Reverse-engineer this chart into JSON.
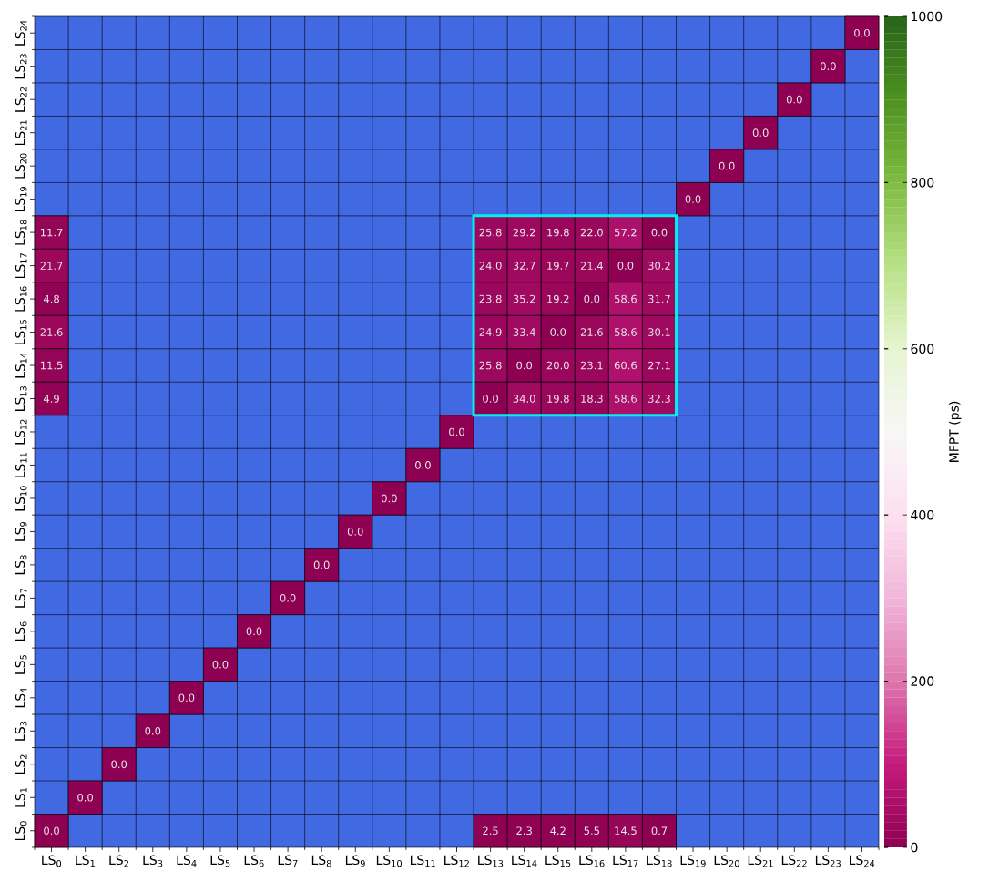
{
  "chart_data": {
    "type": "heatmap",
    "clabel": "MFPT (ps)",
    "color": "#4169e1",
    "clim": [
      0,
      1000
    ],
    "cticks": [
      0,
      200,
      400,
      600,
      800,
      1000
    ],
    "categories": [
      "LS$_{0}$",
      "LS$_{1}$",
      "LS$_{2}$",
      "LS$_{3}$",
      "LS$_{4}$",
      "LS$_{5}$",
      "LS$_{6}$",
      "LS$_{7}$",
      "LS$_{8}$",
      "LS$_{9}$",
      "LS$_{10}$",
      "LS$_{11}$",
      "LS$_{12}$",
      "LS$_{13}$",
      "LS$_{14}$",
      "LS$_{15}$",
      "LS$_{16}$",
      "LS$_{17}$",
      "LS$_{18}$",
      "LS$_{19}$",
      "LS$_{20}$",
      "LS$_{21}$",
      "LS$_{22}$",
      "LS$_{23}$",
      "LS$_{24}$"
    ],
    "y_categories": [
      "LS$_{24}$",
      "LS$_{23}$",
      "LS$_{22}$",
      "LS$_{21}$",
      "LS$_{20}$",
      "LS$_{19}$",
      "LS$_{18}$",
      "LS$_{17}$",
      "LS$_{16}$",
      "LS$_{15}$",
      "LS$_{14}$",
      "LS$_{13}$",
      "LS$_{12}$",
      "LS$_{11}$",
      "LS$_{10}$",
      "LS$_{9}$",
      "LS$_{8}$",
      "LS$_{7}$",
      "LS$_{6}$",
      "LS$_{5}$",
      "LS$_{4}$",
      "LS$_{3}$",
      "LS$_{2}$",
      "LS$_{1}$",
      "LS$_{0}$"
    ],
    "cells": [
      [
        null,
        null,
        null,
        null,
        null,
        null,
        null,
        null,
        null,
        null,
        null,
        null,
        null,
        null,
        null,
        null,
        null,
        null,
        null,
        null,
        null,
        null,
        null,
        null,
        0.0
      ],
      [
        null,
        null,
        null,
        null,
        null,
        null,
        null,
        null,
        null,
        null,
        null,
        null,
        null,
        null,
        null,
        null,
        null,
        null,
        null,
        null,
        null,
        null,
        null,
        0.0,
        null
      ],
      [
        null,
        null,
        null,
        null,
        null,
        null,
        null,
        null,
        null,
        null,
        null,
        null,
        null,
        null,
        null,
        null,
        null,
        null,
        null,
        null,
        null,
        null,
        0.0,
        null,
        null
      ],
      [
        null,
        null,
        null,
        null,
        null,
        null,
        null,
        null,
        null,
        null,
        null,
        null,
        null,
        null,
        null,
        null,
        null,
        null,
        null,
        null,
        null,
        0.0,
        null,
        null,
        null
      ],
      [
        null,
        null,
        null,
        null,
        null,
        null,
        null,
        null,
        null,
        null,
        null,
        null,
        null,
        null,
        null,
        null,
        null,
        null,
        null,
        null,
        0.0,
        null,
        null,
        null,
        null
      ],
      [
        null,
        null,
        null,
        null,
        null,
        null,
        null,
        null,
        null,
        null,
        null,
        null,
        null,
        null,
        null,
        null,
        null,
        null,
        null,
        0.0,
        null,
        null,
        null,
        null,
        null
      ],
      [
        11.7,
        null,
        null,
        null,
        null,
        null,
        null,
        null,
        null,
        null,
        null,
        null,
        null,
        25.8,
        29.2,
        19.8,
        22.0,
        57.2,
        0.0,
        null,
        null,
        null,
        null,
        null,
        null
      ],
      [
        21.7,
        null,
        null,
        null,
        null,
        null,
        null,
        null,
        null,
        null,
        null,
        null,
        null,
        24.0,
        32.7,
        19.7,
        21.4,
        0.0,
        30.2,
        null,
        null,
        null,
        null,
        null,
        null
      ],
      [
        4.8,
        null,
        null,
        null,
        null,
        null,
        null,
        null,
        null,
        null,
        null,
        null,
        null,
        23.8,
        35.2,
        19.2,
        0.0,
        58.6,
        31.7,
        null,
        null,
        null,
        null,
        null,
        null
      ],
      [
        21.6,
        null,
        null,
        null,
        null,
        null,
        null,
        null,
        null,
        null,
        null,
        null,
        null,
        24.9,
        33.4,
        0.0,
        21.6,
        58.6,
        30.1,
        null,
        null,
        null,
        null,
        null,
        null
      ],
      [
        11.5,
        null,
        null,
        null,
        null,
        null,
        null,
        null,
        null,
        null,
        null,
        null,
        null,
        25.8,
        0.0,
        20.0,
        23.1,
        60.6,
        27.1,
        null,
        null,
        null,
        null,
        null,
        null
      ],
      [
        4.9,
        null,
        null,
        null,
        null,
        null,
        null,
        null,
        null,
        null,
        null,
        null,
        null,
        0.0,
        34.0,
        19.8,
        18.3,
        58.6,
        32.3,
        null,
        null,
        null,
        null,
        null,
        null
      ],
      [
        null,
        null,
        null,
        null,
        null,
        null,
        null,
        null,
        null,
        null,
        null,
        null,
        0.0,
        null,
        null,
        null,
        null,
        null,
        null,
        null,
        null,
        null,
        null,
        null,
        null
      ],
      [
        null,
        null,
        null,
        null,
        null,
        null,
        null,
        null,
        null,
        null,
        null,
        0.0,
        null,
        null,
        null,
        null,
        null,
        null,
        null,
        null,
        null,
        null,
        null,
        null,
        null
      ],
      [
        null,
        null,
        null,
        null,
        null,
        null,
        null,
        null,
        null,
        null,
        0.0,
        null,
        null,
        null,
        null,
        null,
        null,
        null,
        null,
        null,
        null,
        null,
        null,
        null,
        null
      ],
      [
        null,
        null,
        null,
        null,
        null,
        null,
        null,
        null,
        null,
        0.0,
        null,
        null,
        null,
        null,
        null,
        null,
        null,
        null,
        null,
        null,
        null,
        null,
        null,
        null,
        null
      ],
      [
        null,
        null,
        null,
        null,
        null,
        null,
        null,
        null,
        0.0,
        null,
        null,
        null,
        null,
        null,
        null,
        null,
        null,
        null,
        null,
        null,
        null,
        null,
        null,
        null,
        null
      ],
      [
        null,
        null,
        null,
        null,
        null,
        null,
        null,
        0.0,
        null,
        null,
        null,
        null,
        null,
        null,
        null,
        null,
        null,
        null,
        null,
        null,
        null,
        null,
        null,
        null,
        null
      ],
      [
        null,
        null,
        null,
        null,
        null,
        null,
        0.0,
        null,
        null,
        null,
        null,
        null,
        null,
        null,
        null,
        null,
        null,
        null,
        null,
        null,
        null,
        null,
        null,
        null,
        null
      ],
      [
        null,
        null,
        null,
        null,
        null,
        0.0,
        null,
        null,
        null,
        null,
        null,
        null,
        null,
        null,
        null,
        null,
        null,
        null,
        null,
        null,
        null,
        null,
        null,
        null,
        null
      ],
      [
        null,
        null,
        null,
        null,
        0.0,
        null,
        null,
        null,
        null,
        null,
        null,
        null,
        null,
        null,
        null,
        null,
        null,
        null,
        null,
        null,
        null,
        null,
        null,
        null,
        null
      ],
      [
        null,
        null,
        null,
        0.0,
        null,
        null,
        null,
        null,
        null,
        null,
        null,
        null,
        null,
        null,
        null,
        null,
        null,
        null,
        null,
        null,
        null,
        null,
        null,
        null,
        null
      ],
      [
        null,
        null,
        0.0,
        null,
        null,
        null,
        null,
        null,
        null,
        null,
        null,
        null,
        null,
        null,
        null,
        null,
        null,
        null,
        null,
        null,
        null,
        null,
        null,
        null,
        null
      ],
      [
        null,
        0.0,
        null,
        null,
        null,
        null,
        null,
        null,
        null,
        null,
        null,
        null,
        null,
        null,
        null,
        null,
        null,
        null,
        null,
        null,
        null,
        null,
        null,
        null,
        null
      ],
      [
        0.0,
        null,
        null,
        null,
        null,
        null,
        null,
        null,
        null,
        null,
        null,
        null,
        null,
        2.5,
        2.3,
        4.2,
        5.5,
        14.5,
        0.7,
        null,
        null,
        null,
        null,
        null,
        null
      ]
    ],
    "cell_labels": [
      [
        null,
        null,
        null,
        null,
        null,
        null,
        null,
        null,
        null,
        null,
        null,
        null,
        null,
        null,
        null,
        null,
        null,
        null,
        null,
        null,
        null,
        null,
        null,
        null,
        "0.0"
      ],
      [
        null,
        null,
        null,
        null,
        null,
        null,
        null,
        null,
        null,
        null,
        null,
        null,
        null,
        null,
        null,
        null,
        null,
        null,
        null,
        null,
        null,
        null,
        null,
        "0.0",
        null
      ],
      [
        null,
        null,
        null,
        null,
        null,
        null,
        null,
        null,
        null,
        null,
        null,
        null,
        null,
        null,
        null,
        null,
        null,
        null,
        null,
        null,
        null,
        null,
        "0.0",
        null,
        null
      ],
      [
        null,
        null,
        null,
        null,
        null,
        null,
        null,
        null,
        null,
        null,
        null,
        null,
        null,
        null,
        null,
        null,
        null,
        null,
        null,
        null,
        null,
        "0.0",
        null,
        null,
        null
      ],
      [
        null,
        null,
        null,
        null,
        null,
        null,
        null,
        null,
        null,
        null,
        null,
        null,
        null,
        null,
        null,
        null,
        null,
        null,
        null,
        null,
        "0.0",
        null,
        null,
        null,
        null
      ],
      [
        null,
        null,
        null,
        null,
        null,
        null,
        null,
        null,
        null,
        null,
        null,
        null,
        null,
        null,
        null,
        null,
        null,
        null,
        null,
        "0.0",
        null,
        null,
        null,
        null,
        null
      ],
      [
        "11.7",
        null,
        null,
        null,
        null,
        null,
        null,
        null,
        null,
        null,
        null,
        null,
        null,
        "25.8",
        "29.2",
        "19.8",
        "22.0",
        "57.2",
        "0.0",
        null,
        null,
        null,
        null,
        null,
        null
      ],
      [
        "21.7",
        null,
        null,
        null,
        null,
        null,
        null,
        null,
        null,
        null,
        null,
        null,
        null,
        "24.0",
        "32.7",
        "19.7",
        "21.4",
        "0.0",
        "30.2",
        null,
        null,
        null,
        null,
        null,
        null
      ],
      [
        "4.8",
        null,
        null,
        null,
        null,
        null,
        null,
        null,
        null,
        null,
        null,
        null,
        null,
        "23.8",
        "35.2",
        "19.2",
        "0.0",
        "58.6",
        "31.7",
        null,
        null,
        null,
        null,
        null,
        null
      ],
      [
        "21.6",
        null,
        null,
        null,
        null,
        null,
        null,
        null,
        null,
        null,
        null,
        null,
        null,
        "24.9",
        "33.4",
        "0.0",
        "21.6",
        "58.6",
        "30.1",
        null,
        null,
        null,
        null,
        null,
        null
      ],
      [
        "11.5",
        null,
        null,
        null,
        null,
        null,
        null,
        null,
        null,
        null,
        null,
        null,
        null,
        "25.8",
        "0.0",
        "20.0",
        "23.1",
        "60.6",
        "27.1",
        null,
        null,
        null,
        null,
        null,
        null
      ],
      [
        "4.9",
        null,
        null,
        null,
        null,
        null,
        null,
        null,
        null,
        null,
        null,
        null,
        null,
        "0.0",
        "34.0",
        "19.8",
        "18.3",
        "58.6",
        "32.3",
        null,
        null,
        null,
        null,
        null,
        null
      ],
      [
        null,
        null,
        null,
        null,
        null,
        null,
        null,
        null,
        null,
        null,
        null,
        null,
        "0.0",
        null,
        null,
        null,
        null,
        null,
        null,
        null,
        null,
        null,
        null,
        null,
        null
      ],
      [
        null,
        null,
        null,
        null,
        null,
        null,
        null,
        null,
        null,
        null,
        null,
        "0.0",
        null,
        null,
        null,
        null,
        null,
        null,
        null,
        null,
        null,
        null,
        null,
        null,
        null
      ],
      [
        null,
        null,
        null,
        null,
        null,
        null,
        null,
        null,
        null,
        null,
        "0.0",
        null,
        null,
        null,
        null,
        null,
        null,
        null,
        null,
        null,
        null,
        null,
        null,
        null,
        null
      ],
      [
        null,
        null,
        null,
        null,
        null,
        null,
        null,
        null,
        null,
        "0.0",
        null,
        null,
        null,
        null,
        null,
        null,
        null,
        null,
        null,
        null,
        null,
        null,
        null,
        null,
        null
      ],
      [
        null,
        null,
        null,
        null,
        null,
        null,
        null,
        null,
        "0.0",
        null,
        null,
        null,
        null,
        null,
        null,
        null,
        null,
        null,
        null,
        null,
        null,
        null,
        null,
        null,
        null
      ],
      [
        null,
        null,
        null,
        null,
        null,
        null,
        null,
        "0.0",
        null,
        null,
        null,
        null,
        null,
        null,
        null,
        null,
        null,
        null,
        null,
        null,
        null,
        null,
        null,
        null,
        null
      ],
      [
        null,
        null,
        null,
        null,
        null,
        null,
        "0.0",
        null,
        null,
        null,
        null,
        null,
        null,
        null,
        null,
        null,
        null,
        null,
        null,
        null,
        null,
        null,
        null,
        null,
        null
      ],
      [
        null,
        null,
        null,
        null,
        null,
        "0.0",
        null,
        null,
        null,
        null,
        null,
        null,
        null,
        null,
        null,
        null,
        null,
        null,
        null,
        null,
        null,
        null,
        null,
        null,
        null
      ],
      [
        null,
        null,
        null,
        null,
        "0.0",
        null,
        null,
        null,
        null,
        null,
        null,
        null,
        null,
        null,
        null,
        null,
        null,
        null,
        null,
        null,
        null,
        null,
        null,
        null,
        null
      ],
      [
        null,
        null,
        null,
        "0.0",
        null,
        null,
        null,
        null,
        null,
        null,
        null,
        null,
        null,
        null,
        null,
        null,
        null,
        null,
        null,
        null,
        null,
        null,
        null,
        null,
        null
      ],
      [
        null,
        null,
        "0.0",
        null,
        null,
        null,
        null,
        null,
        null,
        null,
        null,
        null,
        null,
        null,
        null,
        null,
        null,
        null,
        null,
        null,
        null,
        null,
        null,
        null,
        null
      ],
      [
        null,
        "0.0",
        null,
        null,
        null,
        null,
        null,
        null,
        null,
        null,
        null,
        null,
        null,
        null,
        null,
        null,
        null,
        null,
        null,
        null,
        null,
        null,
        null,
        null,
        null
      ],
      [
        "0.0",
        null,
        null,
        null,
        null,
        null,
        null,
        null,
        null,
        null,
        null,
        null,
        null,
        "2.5",
        "2.3",
        "4.2",
        "5.5",
        "14.5",
        "0.7",
        null,
        null,
        null,
        null,
        null,
        null
      ]
    ]
  }
}
